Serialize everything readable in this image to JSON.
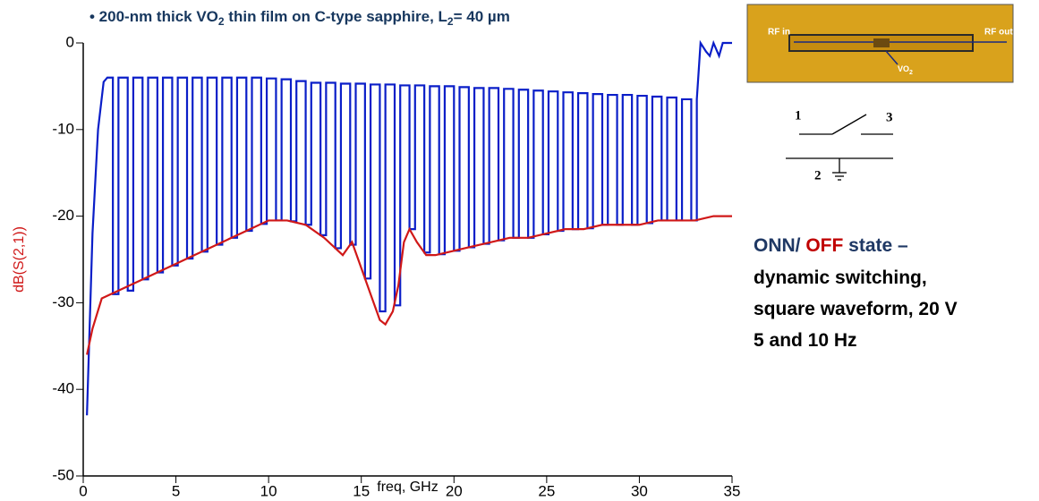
{
  "chart_data": {
    "type": "line",
    "title": [
      "• 200-nm thick VO",
      "2",
      " thin film on C-type sapphire,  L",
      "2",
      "= 40 µm"
    ],
    "x_label": "freq, GHz",
    "y_label": "dB(S(2,1))",
    "xlim": [
      0,
      35
    ],
    "xticks": [
      0,
      5,
      10,
      15,
      20,
      25,
      30,
      35
    ],
    "ylim": [
      -50,
      0
    ],
    "yticks": [
      0,
      -10,
      -20,
      -30,
      -40,
      -50
    ],
    "grid": false,
    "series": [
      {
        "color": "#0a1ec8",
        "x": [
          0.2,
          0.3,
          0.5,
          0.8,
          1.1,
          1.3,
          1.6,
          1.6,
          1.9,
          1.9,
          2.4,
          2.4,
          2.7,
          2.7,
          3.2,
          3.2,
          3.5,
          3.5,
          4.0,
          4.0,
          4.3,
          4.3,
          4.8,
          4.8,
          5.1,
          5.1,
          5.6,
          5.6,
          5.9,
          5.9,
          6.4,
          6.4,
          6.7,
          6.7,
          7.2,
          7.2,
          7.5,
          7.5,
          8.0,
          8.0,
          8.3,
          8.3,
          8.8,
          8.8,
          9.1,
          9.1,
          9.6,
          9.6,
          9.9,
          9.9,
          10.4,
          10.4,
          10.7,
          10.7,
          11.2,
          11.2,
          11.5,
          11.5,
          12.0,
          12.0,
          12.3,
          12.3,
          12.8,
          12.8,
          13.1,
          13.1,
          13.6,
          13.6,
          13.9,
          13.9,
          14.4,
          14.4,
          14.7,
          14.7,
          15.2,
          15.2,
          15.5,
          15.5,
          16.0,
          16.0,
          16.3,
          16.3,
          16.8,
          16.8,
          17.1,
          17.1,
          17.6,
          17.6,
          17.9,
          17.9,
          18.4,
          18.4,
          18.7,
          18.7,
          19.2,
          19.2,
          19.5,
          19.5,
          20.0,
          20.0,
          20.3,
          20.3,
          20.8,
          20.8,
          21.1,
          21.1,
          21.6,
          21.6,
          21.9,
          21.9,
          22.4,
          22.4,
          22.7,
          22.7,
          23.2,
          23.2,
          23.5,
          23.5,
          24.0,
          24.0,
          24.3,
          24.3,
          24.8,
          24.8,
          25.1,
          25.1,
          25.6,
          25.6,
          25.9,
          25.9,
          26.4,
          26.4,
          26.7,
          26.7,
          27.2,
          27.2,
          27.5,
          27.5,
          28.0,
          28.0,
          28.3,
          28.3,
          28.8,
          28.8,
          29.1,
          29.1,
          29.6,
          29.6,
          29.9,
          29.9,
          30.4,
          30.4,
          30.7,
          30.7,
          31.2,
          31.2,
          31.5,
          31.5,
          32.0,
          32.0,
          32.3,
          32.3,
          32.8,
          32.8,
          33.1,
          33.1,
          33.3,
          33.6,
          33.8,
          34.0,
          34.3,
          34.5,
          35.0
        ],
        "values": [
          -43,
          -36,
          -22,
          -10,
          -4.5,
          -4,
          -4,
          -29,
          -29,
          -4,
          -4,
          -28.6,
          -28.6,
          -4,
          -4,
          -27.3,
          -27.3,
          -4,
          -4,
          -26.5,
          -26.5,
          -4,
          -4,
          -25.7,
          -25.7,
          -4,
          -4,
          -24.9,
          -24.9,
          -4,
          -4,
          -24.1,
          -24.1,
          -4,
          -4,
          -23.3,
          -23.3,
          -4,
          -4,
          -22.5,
          -22.5,
          -4,
          -4,
          -21.7,
          -21.7,
          -4,
          -4,
          -20.9,
          -20.9,
          -4.1,
          -4.1,
          -20.5,
          -20.5,
          -4.2,
          -4.2,
          -20.6,
          -20.6,
          -4.4,
          -4.4,
          -21,
          -21,
          -4.6,
          -4.6,
          -22.2,
          -22.2,
          -4.6,
          -4.6,
          -23.7,
          -23.7,
          -4.7,
          -4.7,
          -23.3,
          -23.3,
          -4.7,
          -4.7,
          -27.2,
          -27.2,
          -4.8,
          -4.8,
          -31,
          -31,
          -4.8,
          -4.8,
          -30.3,
          -30.3,
          -4.9,
          -4.9,
          -21.5,
          -21.5,
          -4.9,
          -4.9,
          -24.2,
          -24.2,
          -5,
          -5,
          -24.4,
          -24.4,
          -5,
          -5,
          -24,
          -24,
          -5.1,
          -5.1,
          -23.6,
          -23.6,
          -5.2,
          -5.2,
          -23.2,
          -23.2,
          -5.2,
          -5.2,
          -22.8,
          -22.8,
          -5.3,
          -5.3,
          -22.5,
          -22.5,
          -5.4,
          -5.4,
          -22.5,
          -22.5,
          -5.5,
          -5.5,
          -22.1,
          -22.1,
          -5.6,
          -5.6,
          -21.7,
          -21.7,
          -5.7,
          -5.7,
          -21.5,
          -21.5,
          -5.8,
          -5.8,
          -21.4,
          -21.4,
          -5.9,
          -5.9,
          -21,
          -21,
          -6,
          -6,
          -21,
          -21,
          -6,
          -6,
          -21,
          -21,
          -6.1,
          -6.1,
          -20.8,
          -20.8,
          -6.2,
          -6.2,
          -20.5,
          -20.5,
          -6.3,
          -6.3,
          -20.5,
          -20.5,
          -6.5,
          -6.5,
          -20.5,
          -20.5,
          -6.5,
          0,
          -1,
          -1.5,
          0,
          -1.5,
          0,
          0
        ]
      },
      {
        "color": "#d01818",
        "x": [
          0.2,
          0.5,
          1,
          2,
          3,
          4,
          5,
          6,
          7,
          8,
          9,
          10,
          11,
          12,
          13,
          14,
          14.5,
          15,
          15.5,
          16,
          16.3,
          16.7,
          17,
          17.3,
          17.6,
          18,
          18.5,
          19,
          20,
          21,
          22,
          23,
          24,
          25,
          26,
          27,
          28,
          29,
          30,
          31,
          32,
          33,
          34,
          35
        ],
        "values": [
          -36,
          -33,
          -29.5,
          -28.5,
          -27.5,
          -26.5,
          -25.5,
          -24.5,
          -23.5,
          -22.5,
          -21.5,
          -20.5,
          -20.5,
          -21,
          -22.5,
          -24.5,
          -23,
          -26,
          -29,
          -32,
          -32.5,
          -31,
          -28,
          -23,
          -21.5,
          -23,
          -24.5,
          -24.5,
          -24,
          -23.5,
          -23,
          -22.5,
          -22.5,
          -22,
          -21.5,
          -21.5,
          -21,
          -21,
          -21,
          -20.5,
          -20.5,
          -20.5,
          -20,
          -20
        ]
      }
    ]
  },
  "annotation": [
    [
      {
        "text": "ONN/ ",
        "color": "#1f3864"
      },
      {
        "text": "OFF",
        "color": "#c00000"
      },
      {
        "text": " state –",
        "color": "#1f3864"
      }
    ],
    [
      {
        "text": "dynamic switching,",
        "color": "#000000"
      }
    ],
    [
      {
        "text": "square waveform, 20 V",
        "color": "#000000"
      }
    ],
    [
      {
        "text": "5 and 10 Hz",
        "color": "#000000"
      }
    ]
  ],
  "photo": {
    "rf_in": "RF in",
    "rf_out": "RF out",
    "vo2": [
      "VO",
      "2"
    ]
  },
  "schematic": {
    "port1": "1",
    "port2": "2",
    "port3": "3"
  }
}
